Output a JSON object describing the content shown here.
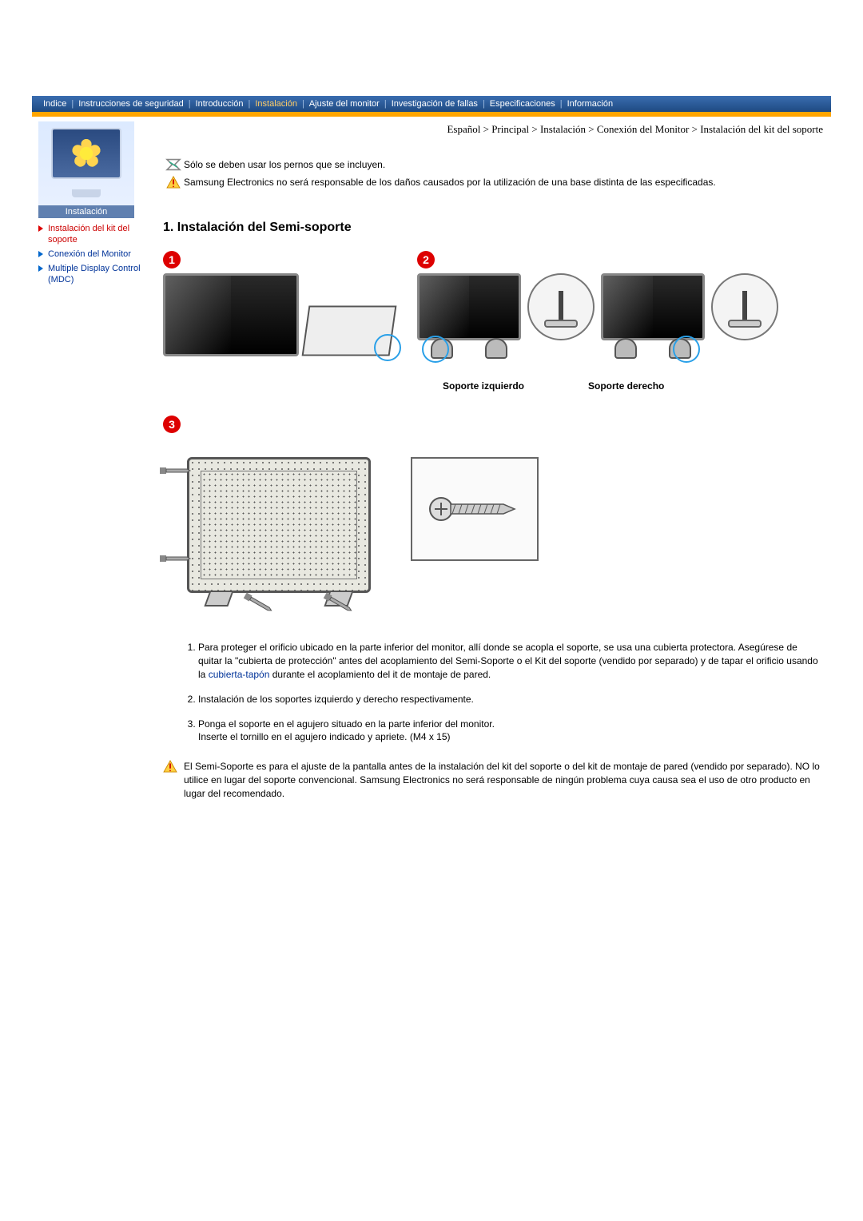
{
  "nav": {
    "items": [
      "Indice",
      "Instrucciones de seguridad",
      "Introducción",
      "Instalación",
      "Ajuste del monitor",
      "Investigación de fallas",
      "Especificaciones",
      "Información"
    ],
    "active_index": 3
  },
  "sidebar": {
    "thumb_label": "Instalación",
    "links": [
      {
        "label": "Instalación del kit del soporte",
        "color": "red"
      },
      {
        "label": "Conexión del Monitor",
        "color": "blue"
      },
      {
        "label": "Multiple Display Control (MDC)",
        "color": "blue"
      }
    ]
  },
  "breadcrumb": "Español > Principal > Instalación > Conexión del Monitor > Instalación del kit del soporte",
  "notes": {
    "info": "Sólo se deben usar los pernos que se incluyen.",
    "warn1": "Samsung Electronics no será responsable de los daños causados por la utilización de una base distinta de las especificadas."
  },
  "section_title": "1. Instalación del Semi-soporte",
  "figure_labels": {
    "left": "Soporte izquierdo",
    "right": "Soporte derecho"
  },
  "numbers": {
    "n1": "1",
    "n2": "2",
    "n3": "3"
  },
  "steps": [
    {
      "pre": "Para proteger el orificio ubicado en la parte inferior del monitor, allí donde se acopla el soporte, se usa una cubierta protectora. Asegúrese de quitar la \"cubierta de protección\" antes del acoplamiento del Semi-Soporte o el Kit del soporte (vendido por separado) y de tapar el orificio usando la ",
      "link": "cubierta-tapón",
      "post": " durante el acoplamiento del it de montaje de pared."
    },
    {
      "pre": "Instalación de los soportes izquierdo y derecho respectivamente.",
      "link": "",
      "post": ""
    },
    {
      "pre": "Ponga el soporte en el agujero situado en la parte inferior del monitor.\nInserte el tornillo en el agujero indicado y apriete. (M4 x 15)",
      "link": "",
      "post": ""
    }
  ],
  "warn2": "El Semi-Soporte es para el ajuste de la pantalla antes de la instalación del kit del soporte o del kit de montaje de pared (vendido por separado).  NO lo utilice en lugar del soporte convencional.  Samsung Electronics no será responsable de ningún problema cuya causa sea el uso de otro producto en lugar del recomendado.",
  "colors": {
    "accent_red": "#d00000",
    "accent_orange": "#ffa500",
    "nav_bg": "#2a5a9a",
    "link_blue": "#003399",
    "highlight": "#2aa0e8"
  }
}
